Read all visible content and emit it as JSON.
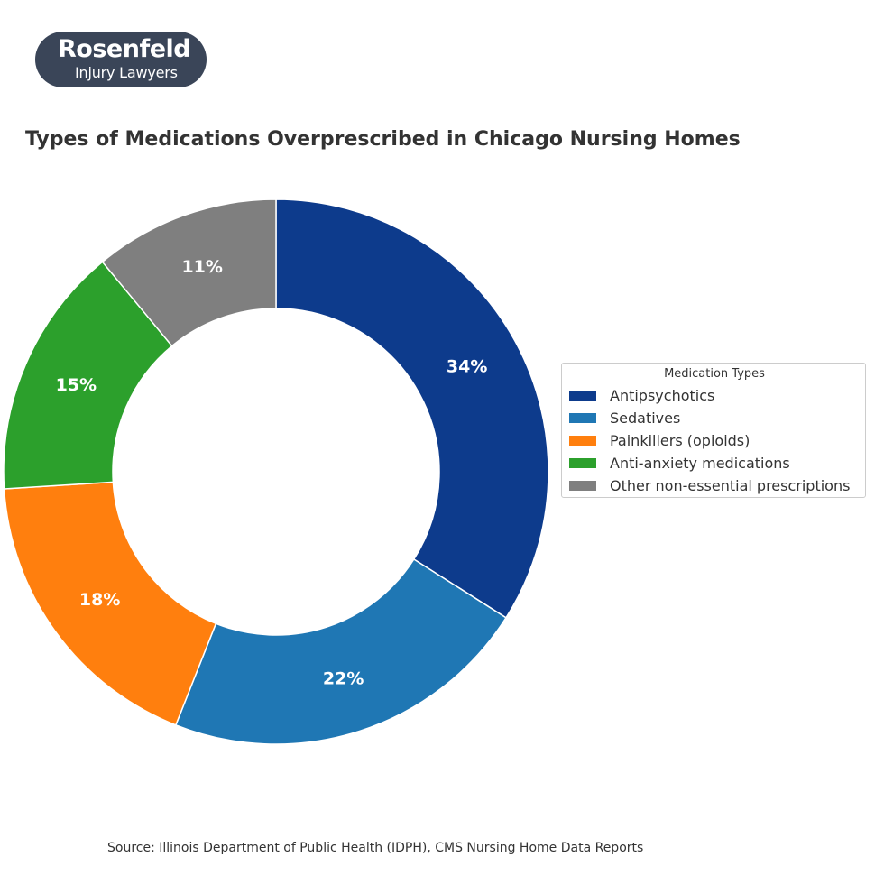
{
  "logo": {
    "name": "Rosenfeld",
    "tagline": "Injury Lawyers"
  },
  "chart_data": {
    "type": "pie",
    "variant": "donut",
    "title": "Types of Medications Overprescribed in Chicago Nursing Homes",
    "categories": [
      "Antipsychotics",
      "Sedatives",
      "Painkillers (opioids)",
      "Anti-anxiety medications",
      "Other non-essential prescriptions"
    ],
    "values": [
      34,
      22,
      18,
      15,
      11
    ],
    "labels": [
      "34%",
      "22%",
      "18%",
      "15%",
      "11%"
    ],
    "colors": [
      "#0d3b8c",
      "#1f77b4",
      "#ff7f0e",
      "#2ca02c",
      "#7f7f7f"
    ],
    "start": "12 o'clock",
    "direction": "clockwise",
    "legend": {
      "title": "Medication Types",
      "position": "right"
    }
  },
  "source": "Source: Illinois Department of Public Health (IDPH), CMS Nursing Home Data Reports"
}
